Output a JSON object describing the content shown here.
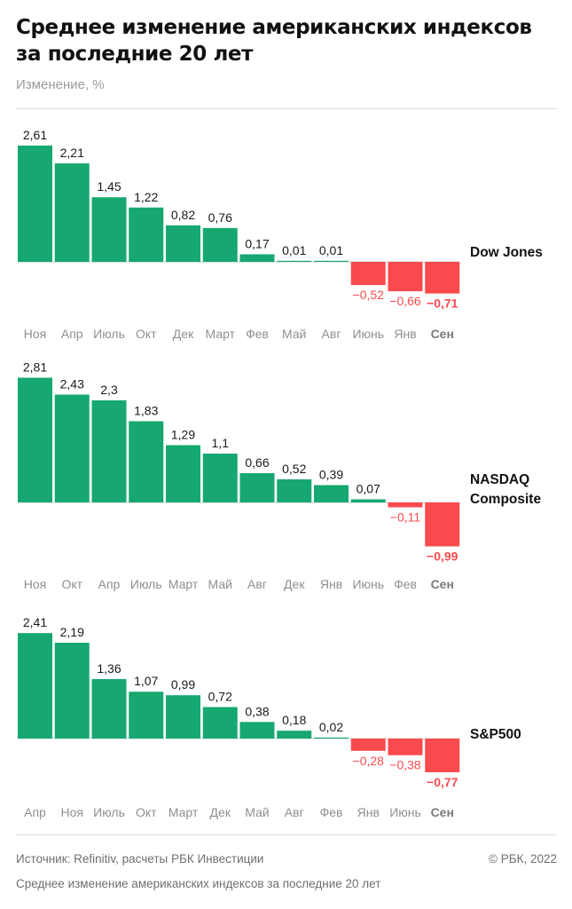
{
  "header": {
    "title": "Среднее изменение американских индексов за последние 20 лет",
    "subtitle": "Изменение, %"
  },
  "footer": {
    "source": "Источник:  Refinitiv, расчеты РБК Инвестиции",
    "copyright": "©  РБК, 2022",
    "note": "Среднее изменение американских индексов за последние 20 лет"
  },
  "colors": {
    "positive": "#16a870",
    "negative": "#fb4a4e",
    "label": "#1a1a1a",
    "month": "#8f8f8f",
    "month_highlight": "#7a7a7a"
  },
  "chart_data": [
    {
      "type": "bar",
      "name": "Dow Jones",
      "categories": [
        "Ноя",
        "Апр",
        "Июль",
        "Окт",
        "Дек",
        "Март",
        "Фев",
        "Май",
        "Авг",
        "Июнь",
        "Янв",
        "Сен"
      ],
      "value_labels": [
        "2,61",
        "2,21",
        "1,45",
        "1,22",
        "0,82",
        "0,76",
        "0,17",
        "0,01",
        "0,01",
        "−0,52",
        "−0,66",
        "−0,71"
      ],
      "values": [
        2.61,
        2.21,
        1.45,
        1.22,
        0.82,
        0.76,
        0.17,
        0.01,
        0.01,
        -0.52,
        -0.66,
        -0.71
      ],
      "highlight": "Сен"
    },
    {
      "type": "bar",
      "name": "NASDAQ Composite",
      "categories": [
        "Ноя",
        "Окт",
        "Апр",
        "Июль",
        "Март",
        "Май",
        "Авг",
        "Дек",
        "Янв",
        "Июнь",
        "Фев",
        "Сен"
      ],
      "value_labels": [
        "2,81",
        "2,43",
        "2,3",
        "1,83",
        "1,29",
        "1,1",
        "0,66",
        "0,52",
        "0,39",
        "0,07",
        "−0,11",
        "−0,99"
      ],
      "values": [
        2.81,
        2.43,
        2.3,
        1.83,
        1.29,
        1.1,
        0.66,
        0.52,
        0.39,
        0.07,
        -0.11,
        -0.99
      ],
      "highlight": "Сен"
    },
    {
      "type": "bar",
      "name": "S&P500",
      "categories": [
        "Апр",
        "Ноя",
        "Июль",
        "Окт",
        "Март",
        "Дек",
        "Май",
        "Авг",
        "Фев",
        "Янв",
        "Июнь",
        "Сен"
      ],
      "value_labels": [
        "2,41",
        "2,19",
        "1,36",
        "1,07",
        "0,99",
        "0,72",
        "0,38",
        "0,18",
        "0,02",
        "−0,28",
        "−0,38",
        "−0,77"
      ],
      "values": [
        2.41,
        2.19,
        1.36,
        1.07,
        0.99,
        0.72,
        0.38,
        0.18,
        0.02,
        -0.28,
        -0.38,
        -0.77
      ],
      "highlight": "Сен"
    }
  ]
}
